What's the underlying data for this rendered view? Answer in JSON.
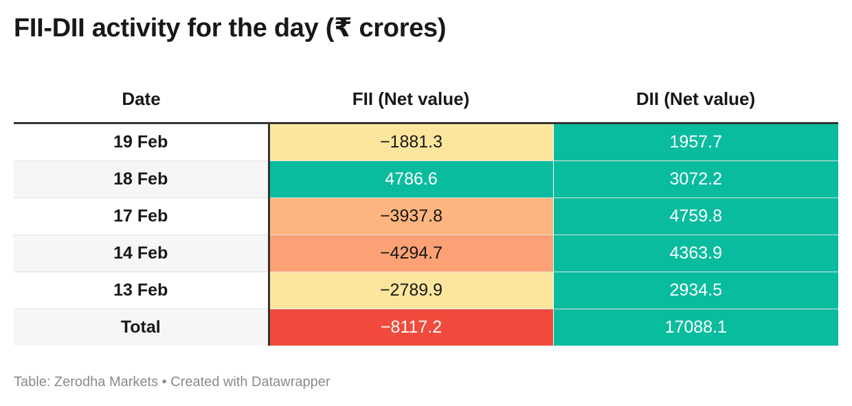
{
  "title": "FII-DII activity for the day (₹ crores)",
  "source": "Table: Zerodha Markets • Created with Datawrapper",
  "colors": {
    "teal": "#0abc9e",
    "light_yellow": "#fce69d",
    "light_orange": "#fdb47e",
    "orange": "#fca175",
    "red": "#f04b3c"
  },
  "chart_data": {
    "type": "table",
    "columns": [
      "Date",
      "FII (Net value)",
      "DII (Net value)"
    ],
    "rows": [
      {
        "date": "19 Feb",
        "fii": "−1881.3",
        "dii": "1957.7",
        "fii_color": "#fce69d",
        "fii_text": "#181818",
        "dii_color": "#0abc9e",
        "dii_text": "#ffffff"
      },
      {
        "date": "18 Feb",
        "fii": "4786.6",
        "dii": "3072.2",
        "fii_color": "#0abc9e",
        "fii_text": "#ffffff",
        "dii_color": "#0abc9e",
        "dii_text": "#ffffff"
      },
      {
        "date": "17 Feb",
        "fii": "−3937.8",
        "dii": "4759.8",
        "fii_color": "#fdb47e",
        "fii_text": "#181818",
        "dii_color": "#0abc9e",
        "dii_text": "#ffffff"
      },
      {
        "date": "14 Feb",
        "fii": "−4294.7",
        "dii": "4363.9",
        "fii_color": "#fca175",
        "fii_text": "#181818",
        "dii_color": "#0abc9e",
        "dii_text": "#ffffff"
      },
      {
        "date": "13 Feb",
        "fii": "−2789.9",
        "dii": "2934.5",
        "fii_color": "#fce69d",
        "fii_text": "#181818",
        "dii_color": "#0abc9e",
        "dii_text": "#ffffff"
      },
      {
        "date": "Total",
        "fii": "−8117.2",
        "dii": "17088.1",
        "fii_color": "#f04b3c",
        "fii_text": "#ffffff",
        "dii_color": "#0abc9e",
        "dii_text": "#ffffff"
      }
    ]
  }
}
